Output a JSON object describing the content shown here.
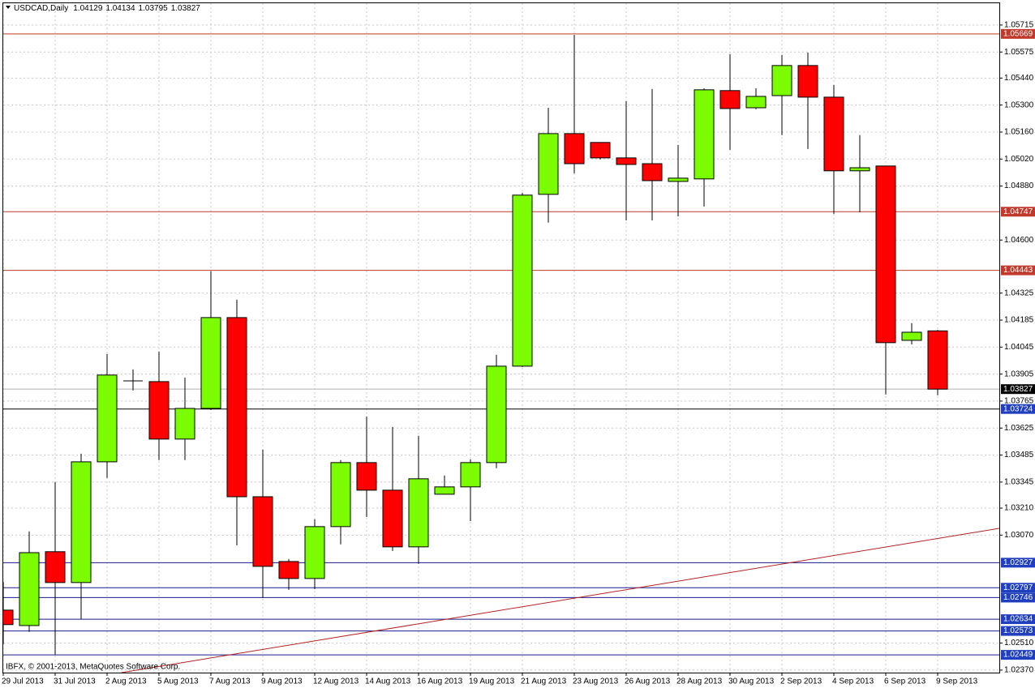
{
  "chart_data": {
    "type": "candlestick",
    "title": "USDCAD,Daily",
    "footnote": "IBFX, © 2001-2013, MetaQuotes Software Corp.",
    "categories": [
      "29 Jul 2013",
      null,
      "31 Jul 2013",
      null,
      "2 Aug 2013",
      null,
      "5 Aug 2013",
      null,
      "7 Aug 2013",
      null,
      "9 Aug 2013",
      null,
      "12 Aug 2013",
      null,
      "14 Aug 2013",
      null,
      "16 Aug 2013",
      null,
      "19 Aug 2013",
      null,
      "21 Aug 2013",
      null,
      "23 Aug 2013",
      null,
      "26 Aug 2013",
      null,
      "28 Aug 2013",
      null,
      "30 Aug 2013",
      null,
      "2 Sep 2013",
      null,
      "4 Sep 2013",
      null,
      "6 Sep 2013",
      null,
      "9 Sep 2013"
    ],
    "open": [
      1.02681,
      1.02601,
      1.02984,
      1.02824,
      1.0345,
      1.0387,
      1.03866,
      1.03568,
      1.03727,
      1.04198,
      1.03269,
      1.02933,
      1.02845,
      1.03114,
      1.03446,
      1.03303,
      1.03009,
      1.03282,
      1.0332,
      1.03446,
      1.03946,
      1.04837,
      1.05152,
      1.05106,
      1.05026,
      1.04996,
      1.04904,
      1.04917,
      1.05375,
      1.05286,
      1.05349,
      1.05505,
      1.05341,
      1.04959,
      1.04984,
      1.0408,
      1.04129
    ],
    "high": [
      1.02828,
      1.03089,
      1.03345,
      1.03492,
      1.04009,
      1.03929,
      1.04022,
      1.03887,
      1.04438,
      1.04291,
      1.03513,
      1.02946,
      1.03152,
      1.03459,
      1.03685,
      1.03631,
      1.03585,
      1.03379,
      1.03463,
      1.04005,
      1.04845,
      1.05286,
      1.05664,
      1.05106,
      1.0532,
      1.05383,
      1.05093,
      1.05387,
      1.05564,
      1.05387,
      1.0556,
      1.05572,
      1.05404,
      1.05144,
      1.04984,
      1.04169,
      1.04134
    ],
    "low": [
      1.02505,
      1.02568,
      1.0245,
      1.02635,
      1.03366,
      1.0382,
      1.03459,
      1.03459,
      1.03719,
      1.03017,
      1.02744,
      1.02786,
      1.0279,
      1.03022,
      1.03164,
      1.02988,
      1.02921,
      1.03282,
      1.03143,
      1.03417,
      1.03942,
      1.0469,
      1.04946,
      1.05018,
      1.04702,
      1.04702,
      1.04723,
      1.04774,
      1.05068,
      1.05278,
      1.05144,
      1.05072,
      1.04736,
      1.04744,
      1.03799,
      1.04059,
      1.03795
    ],
    "close": [
      1.02606,
      1.02979,
      1.02824,
      1.0345,
      1.039,
      1.0387,
      1.03568,
      1.03727,
      1.04198,
      1.03269,
      1.02908,
      1.02845,
      1.03114,
      1.03446,
      1.03303,
      1.03009,
      1.03362,
      1.0332,
      1.03446,
      1.03946,
      1.04833,
      1.05152,
      1.04996,
      1.05026,
      1.04992,
      1.04908,
      1.04921,
      1.05379,
      1.05282,
      1.05345,
      1.05505,
      1.05341,
      1.04959,
      1.04975,
      1.04068,
      1.04122,
      1.03827
    ],
    "up_color": "#7cfc00",
    "down_color": "#ff0000",
    "ylim": [
      1.02357,
      1.05828
    ],
    "yticks": [
      1.05715,
      1.05575,
      {
        "value": 1.0544,
        "label": "1.05440"
      },
      {
        "value": 1.053,
        "label": "1.05300"
      },
      {
        "value": 1.0516,
        "label": "1.05160"
      },
      {
        "value": 1.0502,
        "label": "1.05020"
      },
      {
        "value": 1.0488,
        "label": "1.04880"
      },
      {
        "value": 1.046,
        "label": "1.04600"
      },
      1.04325,
      1.04185,
      1.04045,
      1.03905,
      1.03765,
      1.03625,
      1.03485,
      1.03345,
      {
        "value": 1.0321,
        "label": "1.03210"
      },
      {
        "value": 1.0307,
        "label": "1.03070"
      },
      {
        "value": 1.0251,
        "label": "1.02510"
      },
      {
        "value": 1.0237,
        "label": "1.02370"
      }
    ],
    "grid": true,
    "levels": [
      {
        "value": 1.05669,
        "line_color": "#c0392b",
        "label_color": "#c0392b"
      },
      {
        "value": 1.04747,
        "line_color": "#c0392b",
        "label_color": "#c0392b"
      },
      {
        "value": 1.04443,
        "line_color": "#c0392b",
        "label_color": "#c0392b"
      },
      {
        "value": 1.03724,
        "line_color": "#000000",
        "label_color": "#1f3fbf"
      },
      {
        "value": 1.02927,
        "line_color": "#1a1a8c",
        "label_color": "#1f3fbf"
      },
      {
        "value": 1.02797,
        "line_color": "#1a1a8c",
        "label_color": "#1f3fbf"
      },
      {
        "value": 1.02746,
        "line_color": "#1a1a8c",
        "label_color": "#1f3fbf"
      },
      {
        "value": 1.02634,
        "line_color": "#1a1a8c",
        "label_color": "#1f3fbf"
      },
      {
        "value": 1.02573,
        "line_color": "#1a1a8c",
        "label_color": "#1f3fbf"
      },
      {
        "value": 1.02449,
        "line_color": "#1a1a8c",
        "label_color": "#1f3fbf"
      }
    ]
  }
}
